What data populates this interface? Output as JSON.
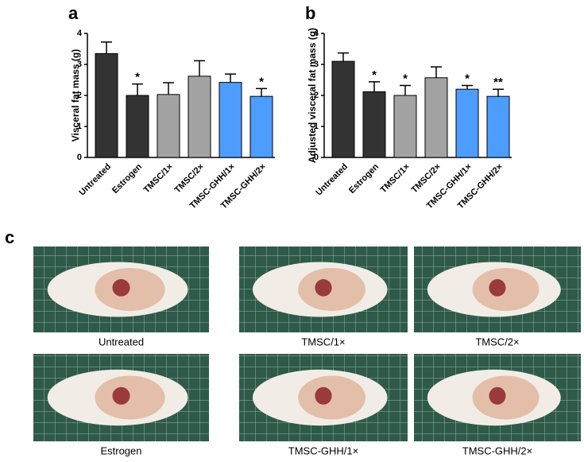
{
  "chart_data": [
    {
      "type": "bar",
      "panel": "a",
      "y_label": "Visceral fat mass (g)",
      "categories": [
        "Untreated",
        "Estrogen",
        "TMSC/1×",
        "TMSC/2×",
        "TMSC-GHH/1×",
        "TMSC-GHH/2×"
      ],
      "values": [
        3.35,
        2.0,
        2.03,
        2.62,
        2.42,
        1.97
      ],
      "errors": [
        0.37,
        0.37,
        0.38,
        0.5,
        0.27,
        0.25
      ],
      "colors": [
        "#333333",
        "#333333",
        "#a3a3a3",
        "#a3a3a3",
        "#4d9dff",
        "#4d9dff"
      ],
      "annotations": [
        null,
        "*",
        null,
        null,
        null,
        "*"
      ],
      "ylim": [
        0,
        4
      ],
      "yticks": [
        0,
        1,
        2,
        3,
        4
      ]
    },
    {
      "type": "bar",
      "panel": "b",
      "y_label": "Adjusted visceral fat mass (g)",
      "categories": [
        "Untreated",
        "Estrogen",
        "TMSC/1×",
        "TMSC/2×",
        "TMSC-GHH/1×",
        "TMSC-GHH/2×"
      ],
      "values": [
        3.1,
        2.12,
        2.0,
        2.57,
        2.2,
        1.97
      ],
      "errors": [
        0.27,
        0.32,
        0.32,
        0.35,
        0.12,
        0.23
      ],
      "colors": [
        "#333333",
        "#333333",
        "#a3a3a3",
        "#a3a3a3",
        "#4d9dff",
        "#4d9dff"
      ],
      "annotations": [
        null,
        "*",
        "*",
        null,
        "*",
        "**"
      ],
      "ylim": [
        0,
        4
      ],
      "yticks": [
        0,
        1,
        2,
        3,
        4
      ]
    }
  ],
  "photos": {
    "panel": "c",
    "labels": [
      "Untreated",
      "TMSC/1×",
      "TMSC/2×",
      "Estrogen",
      "TMSC-GHH/1×",
      "TMSC-GHH/2×"
    ]
  }
}
